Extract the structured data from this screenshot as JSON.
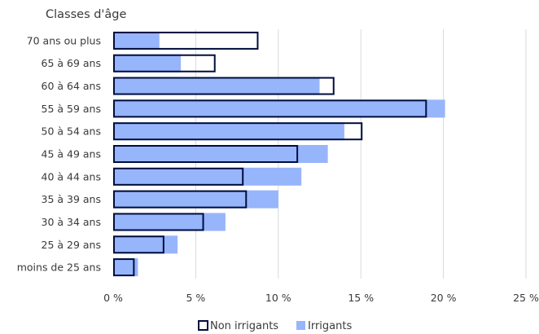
{
  "chart_data": {
    "type": "bar",
    "orientation": "horizontal",
    "title": "",
    "y_axis_title": "Classes d'âge",
    "categories": [
      "70 ans ou plus",
      "65 à 69 ans",
      "60 à 64 ans",
      "55 à 59 ans",
      "50 à 54 ans",
      "45 à 49 ans",
      "40 à 44 ans",
      "35 à 39 ans",
      "30 à 34 ans",
      "25 à 29 ans",
      "moins de 25 ans"
    ],
    "series": [
      {
        "name": "Non irrigants",
        "values": [
          8.8,
          6.2,
          13.4,
          19.0,
          15.1,
          11.2,
          7.9,
          8.1,
          5.5,
          3.1,
          1.3
        ],
        "style": "outline",
        "color": "#000d3d"
      },
      {
        "name": "Irrigants",
        "values": [
          2.8,
          4.1,
          12.5,
          20.1,
          14.0,
          13.0,
          11.4,
          10.0,
          6.8,
          3.9,
          1.5
        ],
        "style": "fill",
        "color": "#97b5fb"
      }
    ],
    "xlim": [
      0,
      25
    ],
    "x_ticks": [
      "0 %",
      "5 %",
      "10 %",
      "15 %",
      "20 %",
      "25 %"
    ],
    "x_tick_values": [
      0,
      5,
      10,
      15,
      20,
      25
    ],
    "grid": "vertical",
    "legend": {
      "position": "bottom",
      "items": [
        "Non irrigants",
        "Irrigants"
      ]
    }
  }
}
